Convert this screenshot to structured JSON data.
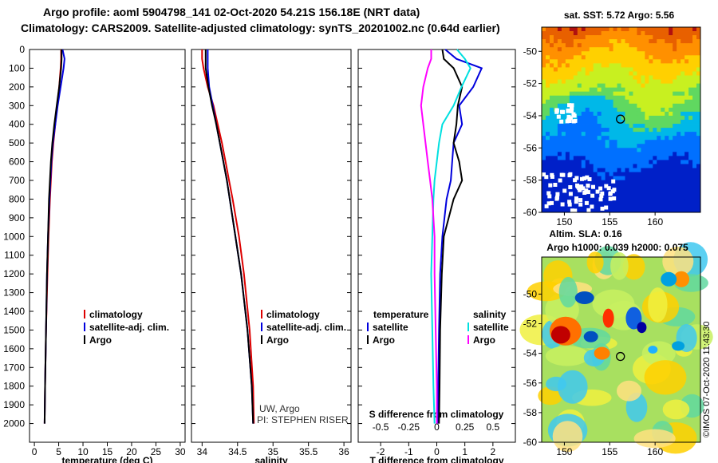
{
  "header": {
    "line1": "Argo profile: aoml 5904798_141 02-Oct-2020 54.21S 156.18E (NRT data)",
    "line2": "Climatology: CARS2009. Satellite-adjusted climatology: synTS_20201002.nc (0.64d earlier)"
  },
  "colors": {
    "climatology": "#dd0000",
    "satellite": "#0000dd",
    "argo": "#000000",
    "sal_sat": "#00e0e0",
    "sal_argo": "#ff00ff"
  },
  "chart_data": [
    {
      "type": "line",
      "panel": "temperature",
      "xlabel": "temperature (deg C)",
      "ylabel": "",
      "xlim": [
        -1,
        31
      ],
      "ylim": [
        2100,
        0
      ],
      "xticks": [
        "0",
        "5",
        "10",
        "15",
        "20",
        "25",
        "30"
      ],
      "yticks": [
        "0",
        "100",
        "200",
        "300",
        "400",
        "500",
        "600",
        "700",
        "800",
        "900",
        "1000",
        "1100",
        "1200",
        "1300",
        "1400",
        "1500",
        "1600",
        "1700",
        "1800",
        "1900",
        "2000"
      ],
      "legend": [
        "climatology",
        "satellite-adj. clim.",
        "Argo"
      ],
      "depth": [
        0,
        50,
        100,
        200,
        300,
        400,
        500,
        600,
        700,
        800,
        1000,
        1200,
        1500,
        1800,
        2000
      ],
      "series": [
        {
          "name": "climatology",
          "values": [
            5.5,
            5.5,
            5.4,
            5.1,
            4.7,
            4.3,
            3.9,
            3.6,
            3.4,
            3.2,
            2.9,
            2.7,
            2.4,
            2.2,
            2.1
          ]
        },
        {
          "name": "satellite-adj. clim.",
          "values": [
            5.8,
            6.2,
            6.0,
            5.4,
            4.8,
            4.3,
            3.8,
            3.5,
            3.3,
            3.1,
            2.8,
            2.6,
            2.4,
            2.2,
            2.1
          ]
        },
        {
          "name": "Argo",
          "values": [
            5.6,
            5.6,
            5.5,
            5.1,
            4.6,
            4.1,
            3.7,
            3.4,
            3.2,
            3.0,
            2.8,
            2.6,
            2.4,
            2.2,
            2.1
          ]
        }
      ]
    },
    {
      "type": "line",
      "panel": "salinity",
      "xlabel": "salinity",
      "ylabel": "",
      "xlim": [
        33.85,
        36.1
      ],
      "ylim": [
        2100,
        0
      ],
      "xticks": [
        "34",
        "34.5",
        "35",
        "35.5",
        "36"
      ],
      "legend": [
        "climatology",
        "satellite-adj. clim.",
        "Argo"
      ],
      "annotations": [
        "UW, Argo",
        "PI: STEPHEN RISER"
      ],
      "depth": [
        0,
        50,
        100,
        200,
        300,
        400,
        500,
        600,
        700,
        800,
        1000,
        1200,
        1500,
        1800,
        2000
      ],
      "series": [
        {
          "name": "climatology",
          "values": [
            34.0,
            34.0,
            34.02,
            34.08,
            34.16,
            34.22,
            34.28,
            34.33,
            34.38,
            34.43,
            34.52,
            34.59,
            34.67,
            34.72,
            34.73
          ]
        },
        {
          "name": "satellite-adj. clim.",
          "values": [
            34.08,
            34.08,
            34.08,
            34.1,
            34.15,
            34.2,
            34.25,
            34.3,
            34.35,
            34.39,
            34.47,
            34.55,
            34.64,
            34.7,
            34.72
          ]
        },
        {
          "name": "Argo",
          "values": [
            34.05,
            34.05,
            34.05,
            34.09,
            34.14,
            34.2,
            34.25,
            34.3,
            34.35,
            34.39,
            34.47,
            34.55,
            34.64,
            34.7,
            34.72
          ]
        }
      ]
    },
    {
      "type": "line",
      "panel": "difference",
      "xlabel": "T difference from climatology",
      "x2label": "S difference from climatology",
      "ylabel": "",
      "xlim": [
        -2.8,
        2.8
      ],
      "ylim": [
        2100,
        0
      ],
      "xticks": [
        "-2",
        "-1",
        "0",
        "1",
        "2"
      ],
      "x2ticks": [
        "-0.5",
        "-0.25",
        "0",
        "0.25",
        "0.5"
      ],
      "legend_left_title": "temperature",
      "legend_right_title": "salinity",
      "legend": [
        "satellite",
        "Argo",
        "satellite",
        "Argo"
      ],
      "depth": [
        0,
        50,
        100,
        200,
        300,
        400,
        500,
        600,
        700,
        800,
        1000,
        1200,
        1500,
        1800,
        2000
      ],
      "series": [
        {
          "name": "satellite",
          "quantity": "temperature",
          "values": [
            0.3,
            0.7,
            1.6,
            1.3,
            0.8,
            0.9,
            0.6,
            0.55,
            0.5,
            0.35,
            0.2,
            0.12,
            0.08,
            0.05,
            0.05
          ]
        },
        {
          "name": "Argo",
          "quantity": "temperature",
          "values": [
            0.2,
            0.25,
            0.6,
            0.9,
            0.75,
            0.7,
            0.6,
            0.8,
            0.9,
            0.6,
            0.25,
            0.18,
            0.12,
            0.1,
            0.08
          ]
        },
        {
          "name": "satellite",
          "quantity": "salinity",
          "values": [
            0.18,
            0.25,
            0.3,
            0.22,
            0.15,
            0.05,
            0.02,
            0.0,
            -0.02,
            -0.03,
            -0.04,
            -0.05,
            -0.04,
            -0.03,
            -0.02
          ]
        },
        {
          "name": "Argo",
          "quantity": "salinity",
          "values": [
            -0.05,
            -0.05,
            -0.08,
            -0.12,
            -0.14,
            -0.12,
            -0.1,
            -0.08,
            -0.06,
            -0.04,
            -0.02,
            -0.02,
            -0.01,
            0.0,
            0.0
          ]
        }
      ]
    },
    {
      "type": "heatmap",
      "panel": "SST map",
      "title": "sat. SST: 5.72 Argo: 5.56",
      "xticks": [
        "150",
        "155",
        "160"
      ],
      "yticks": [
        "-50",
        "-52",
        "-54",
        "-56",
        "-58",
        "-60"
      ],
      "xlim": [
        147.5,
        165
      ],
      "ylim": [
        -60,
        -48.5
      ],
      "argo_lon": 156.18,
      "argo_lat": -54.21
    },
    {
      "type": "heatmap",
      "panel": "SLA map",
      "title": "Altim. SLA: 0.16",
      "subtitle": "Argo h1000: 0.039 h2000: 0.075",
      "xticks": [
        "150",
        "155",
        "160"
      ],
      "yticks": [
        "-50",
        "-52",
        "-54",
        "-56",
        "-58",
        "-60"
      ],
      "xlim": [
        147.5,
        165
      ],
      "ylim": [
        -60,
        -47.5
      ],
      "argo_lon": 156.18,
      "argo_lat": -54.21
    }
  ],
  "credit": "©IMOS 07-Oct-2020 11:43:30"
}
